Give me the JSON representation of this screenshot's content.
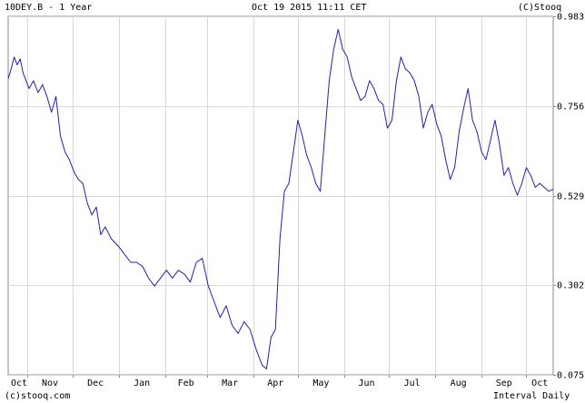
{
  "header": {
    "left": "10DEY.B - 1 Year",
    "center": "Oct 19 2015 11:11 CET",
    "right": "(C)Stooq"
  },
  "footer": {
    "left": "(c)stooq.com",
    "right": "Interval Daily"
  },
  "colors": {
    "line": "#2222aa",
    "grid": "#d8d8d8",
    "frame": "#888888"
  },
  "chart_data": {
    "type": "line",
    "title": "10DEY.B - 1 Year",
    "xlabel": "",
    "ylabel": "",
    "grid": true,
    "ylim": [
      0.075,
      0.983
    ],
    "y_ticks": [
      0.983,
      0.756,
      0.529,
      0.302,
      0.075
    ],
    "y_tick_labels": [
      "0.983",
      "0.756",
      "0.529",
      "0.302",
      "0.075"
    ],
    "x_ticks": [
      "Oct",
      "Nov",
      "Dec",
      "Jan",
      "Feb",
      "Mar",
      "Apr",
      "May",
      "Jun",
      "Jul",
      "Aug",
      "Sep",
      "Oct"
    ],
    "x_tick_dates": [
      "2014-10-01",
      "2014-11-01",
      "2014-12-01",
      "2015-01-01",
      "2015-02-01",
      "2015-03-01",
      "2015-04-01",
      "2015-05-01",
      "2015-06-01",
      "2015-07-01",
      "2015-08-01",
      "2015-09-01",
      "2015-10-01"
    ],
    "xlim": [
      "2014-10-19",
      "2015-10-19"
    ],
    "series": [
      {
        "x": [
          "2014-10-19",
          "2014-10-21",
          "2014-10-23",
          "2014-10-25",
          "2014-10-27",
          "2014-10-29",
          "2014-10-31",
          "2014-11-02",
          "2014-11-05",
          "2014-11-08",
          "2014-11-11",
          "2014-11-14",
          "2014-11-17",
          "2014-11-20",
          "2014-11-23",
          "2014-11-26",
          "2014-11-29",
          "2014-12-02",
          "2014-12-05",
          "2014-12-08",
          "2014-12-11",
          "2014-12-14",
          "2014-12-17",
          "2014-12-20",
          "2014-12-23",
          "2014-12-27",
          "2015-01-01",
          "2015-01-05",
          "2015-01-09",
          "2015-01-13",
          "2015-01-17",
          "2015-01-21",
          "2015-01-25",
          "2015-01-29",
          "2015-02-02",
          "2015-02-06",
          "2015-02-10",
          "2015-02-14",
          "2015-02-18",
          "2015-02-22",
          "2015-02-26",
          "2015-03-02",
          "2015-03-06",
          "2015-03-10",
          "2015-03-14",
          "2015-03-18",
          "2015-03-22",
          "2015-03-26",
          "2015-03-30",
          "2015-04-03",
          "2015-04-07",
          "2015-04-10",
          "2015-04-13",
          "2015-04-16",
          "2015-04-19",
          "2015-04-22",
          "2015-04-25",
          "2015-04-28",
          "2015-05-01",
          "2015-05-04",
          "2015-05-07",
          "2015-05-10",
          "2015-05-13",
          "2015-05-16",
          "2015-05-19",
          "2015-05-22",
          "2015-05-25",
          "2015-05-28",
          "2015-05-31",
          "2015-06-03",
          "2015-06-06",
          "2015-06-09",
          "2015-06-12",
          "2015-06-15",
          "2015-06-18",
          "2015-06-21",
          "2015-06-24",
          "2015-06-27",
          "2015-06-30",
          "2015-07-03",
          "2015-07-06",
          "2015-07-09",
          "2015-07-12",
          "2015-07-15",
          "2015-07-18",
          "2015-07-21",
          "2015-07-24",
          "2015-07-27",
          "2015-07-30",
          "2015-08-02",
          "2015-08-05",
          "2015-08-08",
          "2015-08-11",
          "2015-08-14",
          "2015-08-17",
          "2015-08-20",
          "2015-08-23",
          "2015-08-26",
          "2015-08-29",
          "2015-09-01",
          "2015-09-04",
          "2015-09-07",
          "2015-09-10",
          "2015-09-13",
          "2015-09-16",
          "2015-09-19",
          "2015-09-22",
          "2015-09-25",
          "2015-09-28",
          "2015-10-01",
          "2015-10-04",
          "2015-10-07",
          "2015-10-10",
          "2015-10-13",
          "2015-10-16",
          "2015-10-19"
        ],
        "values": [
          0.825,
          0.85,
          0.88,
          0.86,
          0.875,
          0.84,
          0.82,
          0.8,
          0.82,
          0.79,
          0.81,
          0.78,
          0.74,
          0.78,
          0.68,
          0.64,
          0.62,
          0.59,
          0.57,
          0.56,
          0.51,
          0.48,
          0.5,
          0.43,
          0.45,
          0.42,
          0.4,
          0.38,
          0.36,
          0.36,
          0.35,
          0.32,
          0.3,
          0.32,
          0.34,
          0.32,
          0.34,
          0.33,
          0.31,
          0.36,
          0.37,
          0.3,
          0.26,
          0.22,
          0.25,
          0.2,
          0.18,
          0.21,
          0.19,
          0.14,
          0.1,
          0.09,
          0.17,
          0.19,
          0.42,
          0.54,
          0.56,
          0.64,
          0.72,
          0.68,
          0.63,
          0.6,
          0.56,
          0.54,
          0.68,
          0.82,
          0.9,
          0.95,
          0.9,
          0.88,
          0.83,
          0.8,
          0.77,
          0.78,
          0.82,
          0.8,
          0.77,
          0.76,
          0.7,
          0.72,
          0.82,
          0.88,
          0.85,
          0.84,
          0.82,
          0.78,
          0.7,
          0.74,
          0.76,
          0.71,
          0.68,
          0.62,
          0.57,
          0.6,
          0.69,
          0.75,
          0.8,
          0.72,
          0.69,
          0.64,
          0.62,
          0.67,
          0.72,
          0.66,
          0.58,
          0.6,
          0.56,
          0.53,
          0.56,
          0.6,
          0.58,
          0.55,
          0.56,
          0.55,
          0.54,
          0.545
        ]
      }
    ]
  }
}
